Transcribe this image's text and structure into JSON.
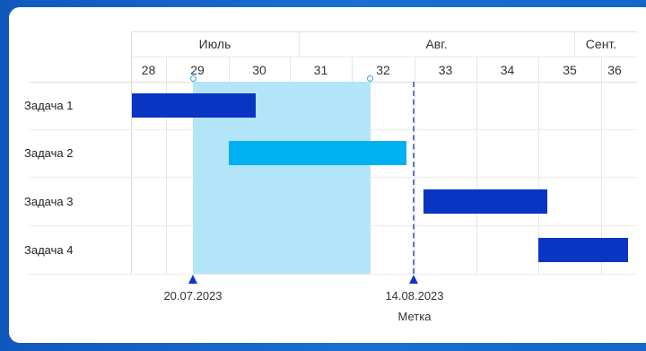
{
  "months": [
    {
      "label": "Июль"
    },
    {
      "label": "Авг."
    },
    {
      "label": "Сент."
    }
  ],
  "weeks": [
    "28",
    "29",
    "30",
    "31",
    "32",
    "33",
    "34",
    "35",
    "36"
  ],
  "tasks": [
    {
      "label": "Задача 1",
      "color": "#0a35c2"
    },
    {
      "label": "Задача 2",
      "color": "#00b0f0"
    },
    {
      "label": "Задача 3",
      "color": "#0a35c2"
    },
    {
      "label": "Задача 4",
      "color": "#0a35c2"
    }
  ],
  "range": {
    "start_label": "20.07.2023",
    "color": "#b3e5f8"
  },
  "marker": {
    "date_label": "14.08.2023",
    "name": "Метка",
    "color": "#1235c7"
  }
}
